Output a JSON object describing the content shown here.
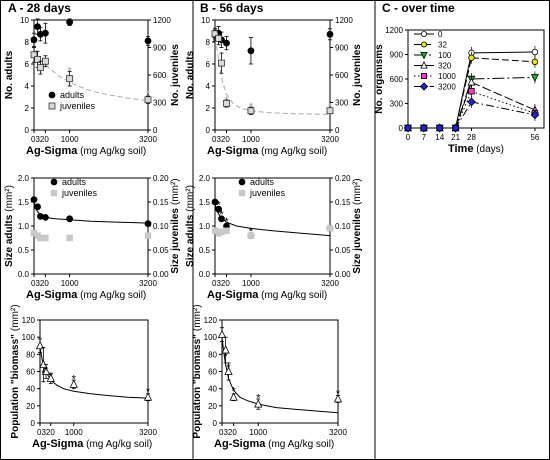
{
  "chart_data": [
    {
      "panel": "A-top",
      "type": "scatter",
      "title": "A - 28 days",
      "xlabel_bold": "Ag-Sigma",
      "xlabel_rest": " (mg Ag/kg soil)",
      "xticks": [
        "0",
        "320",
        "1000",
        "3200"
      ],
      "ylabel": "No. adults",
      "y2label": "No. juveniles",
      "ylim": [
        0,
        10
      ],
      "yticks": [
        "0",
        "2",
        "4",
        "6",
        "8",
        "10"
      ],
      "y2lim": [
        0,
        1200
      ],
      "y2ticks": [
        "0",
        "300",
        "600",
        "900",
        "1200"
      ],
      "legend": [
        "adults",
        "juveniles"
      ],
      "series": [
        {
          "name": "adults",
          "axis": "left",
          "marker": "filled-circle",
          "x": [
            0,
            100,
            180,
            320,
            1000,
            3200
          ],
          "y": [
            8.2,
            9.4,
            8.7,
            8.8,
            9.8,
            8.1
          ],
          "err": [
            0.6,
            0.7,
            0.6,
            0.9,
            0.3,
            0.4
          ]
        },
        {
          "name": "juveniles",
          "axis": "right",
          "marker": "open-square",
          "x": [
            0,
            100,
            180,
            320,
            1000,
            3200
          ],
          "y": [
            820,
            770,
            680,
            750,
            560,
            330
          ],
          "err": [
            80,
            90,
            70,
            60,
            80,
            40
          ]
        }
      ],
      "fit": {
        "axis": "right",
        "x": [
          0,
          100,
          200,
          320,
          500,
          700,
          1000,
          1500,
          2000,
          2600,
          3200
        ],
        "y": [
          830,
          800,
          760,
          720,
          650,
          590,
          520,
          440,
          390,
          350,
          320
        ],
        "style": "dashed"
      },
      "asterisks": [
        {
          "x": 1000,
          "y": 650,
          "axis": "right"
        },
        {
          "x": 3200,
          "y": 395,
          "axis": "right"
        }
      ]
    },
    {
      "panel": "B-top",
      "type": "scatter",
      "title": "B - 56 days",
      "xlabel_bold": "Ag-Sigma",
      "xlabel_rest": " (mg Ag/kg soil)",
      "xticks": [
        "0",
        "320",
        "1000",
        "3200"
      ],
      "ylabel": "No. adults",
      "y2label": "No. juveniles",
      "ylim": [
        0,
        10
      ],
      "yticks": [
        "0",
        "2",
        "4",
        "6",
        "8",
        "10"
      ],
      "y2lim": [
        0,
        1200
      ],
      "y2ticks": [
        "0",
        "300",
        "600",
        "900",
        "1200"
      ],
      "series": [
        {
          "name": "adults",
          "axis": "left",
          "marker": "filled-circle",
          "x": [
            0,
            100,
            180,
            320,
            1000,
            3200
          ],
          "y": [
            8.6,
            8.8,
            8.2,
            7.9,
            7.2,
            8.7
          ],
          "err": [
            0.5,
            0.6,
            0.7,
            0.6,
            1.2,
            0.5
          ]
        },
        {
          "name": "juveniles",
          "axis": "right",
          "marker": "open-square",
          "x": [
            0,
            100,
            180,
            320,
            1000,
            3200
          ],
          "y": [
            1050,
            1000,
            730,
            290,
            210,
            210
          ],
          "err": [
            60,
            70,
            110,
            40,
            40,
            30
          ]
        }
      ],
      "fit": {
        "axis": "right",
        "x": [
          0,
          60,
          120,
          200,
          320,
          500,
          700,
          1000,
          1500,
          2000,
          2600,
          3200
        ],
        "y": [
          1000,
          870,
          720,
          540,
          390,
          290,
          240,
          210,
          190,
          180,
          175,
          170
        ],
        "style": "dashed"
      },
      "asterisks": [
        {
          "x": 320,
          "y": 330,
          "axis": "right"
        },
        {
          "x": 1000,
          "y": 260,
          "axis": "right"
        },
        {
          "x": 3200,
          "y": 250,
          "axis": "right"
        }
      ]
    },
    {
      "panel": "A-mid",
      "type": "scatter",
      "xlabel_bold": "Ag-Sigma",
      "xlabel_rest": " (mg Ag/kg soil)",
      "xticks": [
        "0",
        "320",
        "1000",
        "3200"
      ],
      "ylabel": "Size adults",
      "ylabel_unit": "(mm²)",
      "y2label": "Size juveniles",
      "y2label_unit": "(mm²)",
      "ylim": [
        0,
        2.0
      ],
      "yticks": [
        "0.0",
        "0.5",
        "1.0",
        "1.5",
        "2.0"
      ],
      "y2lim": [
        0,
        0.2
      ],
      "y2ticks": [
        "0.00",
        "0.05",
        "0.10",
        "0.15",
        "0.20"
      ],
      "legend": [
        "adults",
        "juveniles"
      ],
      "series": [
        {
          "name": "adults",
          "axis": "left",
          "marker": "filled-circle",
          "x": [
            0,
            100,
            180,
            320,
            1000,
            3200
          ],
          "y": [
            1.55,
            1.4,
            1.2,
            1.18,
            1.15,
            1.05
          ]
        },
        {
          "name": "juveniles",
          "axis": "right",
          "marker": "gray-square",
          "x": [
            0,
            100,
            180,
            320,
            1000,
            3200
          ],
          "y": [
            0.085,
            0.08,
            0.075,
            0.075,
            0.075,
            0.08
          ]
        }
      ],
      "fit": {
        "axis": "left",
        "x": [
          0,
          80,
          160,
          320,
          600,
          1000,
          1600,
          2400,
          3200
        ],
        "y": [
          1.5,
          1.32,
          1.24,
          1.18,
          1.15,
          1.13,
          1.1,
          1.08,
          1.06
        ],
        "style": "solid"
      }
    },
    {
      "panel": "B-mid",
      "type": "scatter",
      "xlabel_bold": "Ag-Sigma",
      "xlabel_rest": " (mg Ag/kg soil)",
      "xticks": [
        "0",
        "320",
        "1000",
        "3200"
      ],
      "ylabel": "Size adults",
      "ylabel_unit": "(mm²)",
      "y2label": "Size juveniles",
      "y2label_unit": "(mm²)",
      "ylim": [
        0,
        2.0
      ],
      "yticks": [
        "0.0",
        "0.5",
        "1.0",
        "1.5",
        "2.0"
      ],
      "y2lim": [
        0,
        0.2
      ],
      "y2ticks": [
        "0.00",
        "0.05",
        "0.10",
        "0.15",
        "0.20"
      ],
      "legend": [
        "adults",
        "juveniles"
      ],
      "series": [
        {
          "name": "adults",
          "axis": "left",
          "marker": "filled-circle",
          "x": [
            0,
            100,
            180,
            320,
            1000,
            3200
          ],
          "y": [
            1.5,
            1.35,
            1.15,
            1.0,
            0.8,
            0.95
          ]
        },
        {
          "name": "juveniles",
          "axis": "right",
          "marker": "gray-square",
          "x": [
            0,
            100,
            180,
            320,
            1000,
            3200
          ],
          "y": [
            0.09,
            0.085,
            0.088,
            0.09,
            0.08,
            0.095
          ]
        }
      ],
      "fit": {
        "axis": "left",
        "x": [
          0,
          80,
          160,
          320,
          600,
          1000,
          1600,
          2400,
          3200
        ],
        "y": [
          1.45,
          1.28,
          1.18,
          1.08,
          1.0,
          0.95,
          0.9,
          0.85,
          0.8
        ],
        "style": "solid"
      },
      "asterisks": [
        {
          "x": 100,
          "y": 1.45,
          "axis": "left"
        },
        {
          "x": 180,
          "y": 1.25,
          "axis": "left"
        },
        {
          "x": 320,
          "y": 1.1,
          "axis": "left"
        },
        {
          "x": 1000,
          "y": 0.9,
          "axis": "left"
        }
      ]
    },
    {
      "panel": "A-bottom",
      "type": "scatter",
      "xlabel_bold": "Ag-Sigma",
      "xlabel_rest": " (mg Ag/kg soil)",
      "xticks": [
        "0",
        "320",
        "1000",
        "3200"
      ],
      "ylabel": "Population \"biomass\"",
      "ylabel_unit": "(mm²)",
      "ylim": [
        0,
        120
      ],
      "yticks": [
        "0",
        "20",
        "40",
        "60",
        "80",
        "100",
        "120"
      ],
      "series": [
        {
          "name": "biomass",
          "axis": "left",
          "marker": "open-triangle",
          "x": [
            0,
            100,
            180,
            320,
            1000,
            3200
          ],
          "y": [
            90,
            68,
            60,
            52,
            45,
            30
          ],
          "err": [
            8,
            20,
            8,
            6,
            5,
            4
          ]
        }
      ],
      "fit": {
        "axis": "left",
        "x": [
          0,
          60,
          120,
          200,
          320,
          500,
          700,
          1000,
          1500,
          2000,
          2600,
          3200
        ],
        "y": [
          88,
          75,
          65,
          58,
          50,
          44,
          40,
          37,
          34,
          32,
          30,
          29
        ],
        "style": "solid"
      },
      "asterisks": [
        {
          "x": 100,
          "y": 58,
          "axis": "left"
        },
        {
          "x": 180,
          "y": 62,
          "axis": "left"
        },
        {
          "x": 320,
          "y": 55,
          "axis": "left"
        },
        {
          "x": 1000,
          "y": 52,
          "axis": "left"
        },
        {
          "x": 3200,
          "y": 37,
          "axis": "left"
        }
      ]
    },
    {
      "panel": "B-bottom",
      "type": "scatter",
      "xlabel_bold": "Ag-Sigma",
      "xlabel_rest": " (mg Ag/kg soil)",
      "xticks": [
        "0",
        "320",
        "1000",
        "3200"
      ],
      "ylabel": "Population \"biomass\"",
      "ylabel_unit": "(mm²)",
      "ylim": [
        0,
        120
      ],
      "yticks": [
        "0",
        "20",
        "40",
        "60",
        "80",
        "100",
        "120"
      ],
      "series": [
        {
          "name": "biomass",
          "axis": "left",
          "marker": "open-triangle",
          "x": [
            0,
            100,
            180,
            320,
            1000,
            3200
          ],
          "y": [
            103,
            85,
            60,
            30,
            22,
            28
          ],
          "err": [
            8,
            15,
            10,
            4,
            6,
            4
          ]
        }
      ],
      "fit": {
        "axis": "left",
        "x": [
          0,
          50,
          100,
          180,
          320,
          500,
          700,
          1000,
          1500,
          2000,
          2600,
          3200
        ],
        "y": [
          100,
          82,
          68,
          52,
          38,
          30,
          26,
          22,
          18,
          16,
          14,
          12
        ],
        "style": "solid"
      },
      "asterisks": [
        {
          "x": 100,
          "y": 78,
          "axis": "left"
        },
        {
          "x": 180,
          "y": 65,
          "axis": "left"
        },
        {
          "x": 320,
          "y": 38,
          "axis": "left"
        },
        {
          "x": 1000,
          "y": 30,
          "axis": "left"
        },
        {
          "x": 3200,
          "y": 35,
          "axis": "left"
        }
      ]
    },
    {
      "panel": "C",
      "type": "line",
      "title": "C - over time",
      "xlabel": "Time",
      "xlabel_unit": " (days)",
      "ylabel": "No. organisms",
      "xticks": [
        0,
        7,
        14,
        21,
        28,
        56
      ],
      "yticks": [
        0,
        300,
        600,
        900,
        1200
      ],
      "xlim": [
        0,
        60
      ],
      "ylim": [
        0,
        1200
      ],
      "legend": [
        "0",
        "32",
        "100",
        "320",
        "1000",
        "3200"
      ],
      "series": [
        {
          "name": "0",
          "marker": "open-circle",
          "color": "#ffffff",
          "dash": "0",
          "x": [
            0,
            7,
            14,
            21,
            28,
            56
          ],
          "y": [
            0,
            0,
            0,
            0,
            920,
            930
          ]
        },
        {
          "name": "32",
          "marker": "circle",
          "color": "#f2e600",
          "dash": "7,3",
          "x": [
            0,
            7,
            14,
            21,
            28,
            56
          ],
          "y": [
            0,
            0,
            0,
            0,
            860,
            810
          ]
        },
        {
          "name": "100",
          "marker": "triangle-down",
          "color": "#18b818",
          "dash": "12,3,2,3",
          "x": [
            0,
            7,
            14,
            21,
            28,
            56
          ],
          "y": [
            0,
            0,
            0,
            0,
            600,
            620
          ]
        },
        {
          "name": "320",
          "marker": "triangle-up",
          "color": "#ffffff",
          "dash": "9,3",
          "x": [
            0,
            7,
            14,
            21,
            28,
            56
          ],
          "y": [
            0,
            0,
            0,
            0,
            560,
            220
          ]
        },
        {
          "name": "1000",
          "marker": "square",
          "color": "#ff33cc",
          "dash": "1.5,2.5",
          "x": [
            0,
            7,
            14,
            21,
            28,
            56
          ],
          "y": [
            0,
            0,
            0,
            0,
            450,
            180
          ]
        },
        {
          "name": "3200",
          "marker": "diamond",
          "color": "#2222dd",
          "dash": "8,3,1.5,3",
          "x": [
            0,
            7,
            14,
            21,
            28,
            56
          ],
          "y": [
            0,
            0,
            0,
            0,
            320,
            160
          ]
        }
      ]
    }
  ]
}
